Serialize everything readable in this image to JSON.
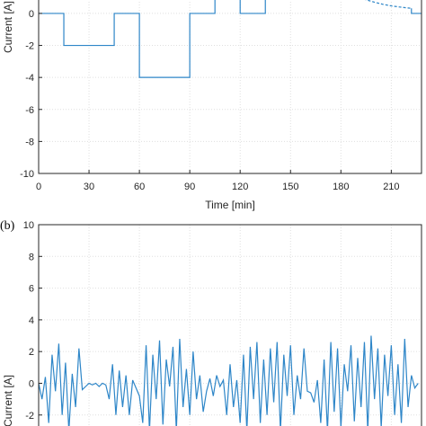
{
  "chart_data": [
    {
      "type": "line",
      "panel": "",
      "xlabel": "Time [min]",
      "ylabel": "Current [A]",
      "xlim": [
        0,
        228
      ],
      "ylim": [
        -10,
        1.4
      ],
      "xticks": [
        0,
        30,
        60,
        90,
        120,
        150,
        180,
        210
      ],
      "yticks": [
        -10,
        -8,
        -6,
        -4,
        -2,
        0
      ],
      "grid": true,
      "color": "#2e86c8",
      "series": [
        {
          "x": [
            0,
            15,
            15,
            45,
            45,
            60,
            60,
            90,
            90,
            105,
            105,
            120,
            120,
            135,
            135
          ],
          "y": [
            0,
            0,
            -2,
            -2,
            0,
            0,
            -4,
            -4,
            0,
            0,
            2,
            2,
            0,
            0,
            2
          ]
        },
        {
          "style": "dashed",
          "x": [
            175,
            180,
            185,
            190,
            195,
            200,
            205,
            210,
            215,
            220,
            222
          ],
          "y": [
            2,
            1.6,
            1.3,
            1.05,
            0.85,
            0.7,
            0.57,
            0.47,
            0.4,
            0.34,
            0.32
          ]
        },
        {
          "x": [
            222,
            222,
            228
          ],
          "y": [
            0.32,
            0,
            0
          ]
        }
      ]
    },
    {
      "type": "line",
      "panel": "(b)",
      "xlabel": "",
      "ylabel": "Current [A]",
      "xlim": [
        0,
        228
      ],
      "ylim": [
        -3.6,
        10
      ],
      "yticks": [
        10,
        8,
        6,
        4,
        2,
        0,
        -2
      ],
      "grid": true,
      "color": "#2e86c8",
      "series": [
        {
          "x": [
            0,
            2,
            4,
            6,
            8,
            10,
            12,
            14,
            16,
            18,
            20,
            22,
            24,
            26,
            28,
            30,
            32,
            34,
            36,
            38,
            40,
            42,
            44,
            46,
            48,
            50,
            52,
            54,
            56,
            58,
            60,
            62,
            64,
            66,
            68,
            70,
            72,
            74,
            76,
            78,
            80,
            82,
            84,
            86,
            88,
            90,
            92,
            94,
            96,
            98,
            100,
            102,
            104,
            106,
            108,
            110,
            112,
            114,
            116,
            118,
            120,
            122,
            124,
            126,
            128,
            130,
            132,
            134,
            136,
            138,
            140,
            142,
            144,
            146,
            148,
            150,
            152,
            154,
            156,
            158,
            160,
            162,
            164,
            166,
            168,
            170,
            172,
            174,
            176,
            178,
            180,
            182,
            184,
            186,
            188,
            190,
            192,
            194,
            196,
            198,
            200,
            202,
            204,
            206,
            208,
            210,
            212,
            214,
            216,
            218,
            220,
            222,
            224,
            226
          ],
          "y": [
            0,
            -1,
            0.4,
            -2.5,
            1.8,
            -0.5,
            2.5,
            -2,
            1.3,
            -3,
            0.6,
            -1.5,
            2.2,
            -0.4,
            -0.2,
            0,
            -0.1,
            0,
            -0.2,
            0,
            -0.1,
            -1,
            1.2,
            -2,
            0.8,
            -1.5,
            0.5,
            -2,
            0.2,
            -0.3,
            -0.8,
            -2.5,
            2.4,
            -3,
            1.8,
            -1,
            2.7,
            -2.6,
            1.5,
            -0.2,
            2.3,
            -3,
            2.8,
            -1.5,
            0.9,
            -2,
            2,
            -1,
            0.5,
            -1.8,
            -0.5,
            0.3,
            -0.8,
            0.5,
            -0.2,
            0.2,
            -2,
            1.2,
            -1.5,
            0.2,
            -2.5,
            1.8,
            -3,
            2.3,
            -1,
            2.6,
            -2.5,
            1.5,
            -2,
            2.2,
            -1.2,
            2.6,
            -3,
            1.8,
            -0.8,
            2.4,
            -2,
            0.5,
            -1,
            2.2,
            -0.5,
            -0.6,
            -1.2,
            0.2,
            -2.5,
            1.5,
            -3,
            2.6,
            -1.8,
            2.2,
            -2.8,
            1.2,
            -0.5,
            2.4,
            -2.4,
            1.6,
            -1.5,
            2.6,
            -3,
            3,
            -1,
            2.2,
            -2.8,
            1.8,
            -0.8,
            2.4,
            -2,
            1.2,
            -2.5,
            2.8,
            -1.5,
            0.5,
            -0.3,
            0
          ]
        }
      ]
    }
  ]
}
